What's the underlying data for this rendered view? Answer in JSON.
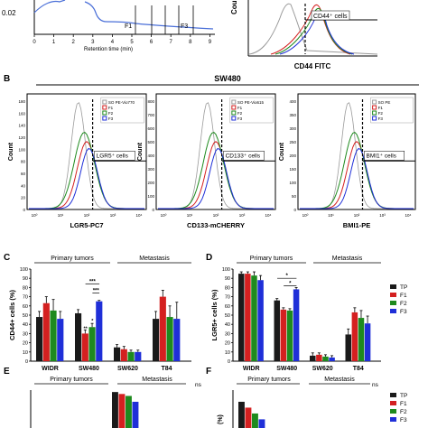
{
  "figure": {
    "panel_b_letter": "B",
    "panel_c_letter": "C",
    "panel_d_letter": "D",
    "panel_e_letter": "E",
    "panel_f_letter": "F",
    "sw480_title": "SW480"
  },
  "panel_a": {
    "ytick": "0.02",
    "xlabel": "Retention time (min)",
    "xticks": [
      "0",
      "1",
      "2",
      "3",
      "4",
      "5",
      "6",
      "7",
      "8",
      "9"
    ],
    "fraction_labels": [
      "F1",
      "F3"
    ]
  },
  "panel_a2": {
    "ylabel": "Cou",
    "xlabel": "CD44 FITC",
    "gate_label": "CD44⁺ cells"
  },
  "flow_panels": [
    {
      "ylabel": "Count",
      "xlabel": "LGR5-PC7",
      "gate_label": "LGR5⁺ cells",
      "legend": [
        "SO PE-Vio770",
        "F1",
        "F2",
        "F3"
      ],
      "yticks": [
        "0",
        "20",
        "40",
        "60",
        "80",
        "100",
        "120",
        "140",
        "160",
        "180"
      ]
    },
    {
      "ylabel": "Count",
      "xlabel": "CD133-mCHERRY",
      "gate_label": "CD133⁺ cells",
      "legend": [
        "SO PE-Vio615",
        "F1",
        "F2",
        "F3"
      ],
      "yticks": [
        "0",
        "100",
        "200",
        "300",
        "400",
        "500",
        "600",
        "700",
        "800"
      ]
    },
    {
      "ylabel": "Count",
      "xlabel": "BMI1-PE",
      "gate_label": "BMI1⁺ cells",
      "legend": [
        "SO PE",
        "F1",
        "F2",
        "F3"
      ],
      "yticks": [
        "0",
        "50",
        "100",
        "150",
        "200",
        "250",
        "300",
        "350",
        "400"
      ]
    }
  ],
  "flow_xticks": [
    "10⁰",
    "10¹",
    "10²",
    "10³",
    "10⁴"
  ],
  "colors": {
    "TP": "#1a1a1a",
    "F1": "#d42020",
    "F2": "#1e8a1e",
    "F3": "#1f2fd8",
    "SO": "#9a9a9a"
  },
  "chart_data": [
    {
      "type": "bar",
      "panel": "C",
      "ylabel": "CD44+ cells (%)",
      "ylim": [
        0,
        100
      ],
      "yticks": [
        0,
        10,
        20,
        30,
        40,
        50,
        60,
        70,
        80,
        90,
        100
      ],
      "categories": [
        "WIDR",
        "SW480",
        "SW620",
        "T84"
      ],
      "group_headers": [
        "Primary tumors",
        "Metastasis"
      ],
      "series": [
        {
          "name": "TP",
          "values": [
            48,
            52,
            15,
            46
          ],
          "errors": [
            6,
            4,
            3,
            8
          ]
        },
        {
          "name": "F1",
          "values": [
            63,
            30,
            13,
            70
          ],
          "errors": [
            7,
            4,
            3,
            7
          ]
        },
        {
          "name": "F2",
          "values": [
            55,
            37,
            10,
            48
          ],
          "errors": [
            12,
            4,
            2,
            12
          ]
        },
        {
          "name": "F3",
          "values": [
            46,
            65,
            10,
            46
          ],
          "errors": [
            8,
            1,
            2,
            18
          ]
        }
      ],
      "annotations": [
        "***",
        "***",
        "**",
        "*"
      ]
    },
    {
      "type": "bar",
      "panel": "D",
      "ylabel": "LGR5+ cells (%)",
      "ylim": [
        0,
        100
      ],
      "yticks": [
        0,
        10,
        20,
        30,
        40,
        50,
        60,
        70,
        80,
        90,
        100
      ],
      "categories": [
        "WIDR",
        "SW480",
        "SW620",
        "T84"
      ],
      "group_headers": [
        "Primary tumors",
        "Metastasis"
      ],
      "series": [
        {
          "name": "TP",
          "values": [
            95,
            66,
            6,
            29
          ],
          "errors": [
            2,
            2,
            3,
            6
          ]
        },
        {
          "name": "F1",
          "values": [
            95,
            56,
            7,
            53
          ],
          "errors": [
            2,
            2,
            2,
            5
          ]
        },
        {
          "name": "F2",
          "values": [
            93,
            55,
            5,
            47
          ],
          "errors": [
            4,
            2,
            2,
            8
          ]
        },
        {
          "name": "F3",
          "values": [
            88,
            78,
            4,
            41
          ],
          "errors": [
            5,
            2,
            2,
            8
          ]
        }
      ],
      "annotations": [
        "*",
        "*"
      ],
      "legend": [
        "TP",
        "F1",
        "F2",
        "F3"
      ]
    },
    {
      "type": "bar",
      "panel": "E",
      "group_headers": [
        "Primary tumors",
        "Metastasis"
      ],
      "annotation": "ns",
      "visible_values_note": "",
      "series": [
        {
          "name": "TP",
          "values": [
            98
          ]
        },
        {
          "name": "F1",
          "values": [
            96
          ]
        },
        {
          "name": "F2",
          "values": [
            94
          ]
        },
        {
          "name": "F3",
          "values": [
            88
          ]
        }
      ]
    },
    {
      "type": "bar",
      "panel": "F",
      "group_headers": [
        "Primary tumors",
        "Metastasis"
      ],
      "annotation": "ns",
      "ylabel": "(%)",
      "legend": [
        "TP",
        "F1",
        "F2",
        "F3"
      ],
      "series": [
        {
          "name": "TP",
          "values": [
            88
          ]
        },
        {
          "name": "F1",
          "values": [
            82
          ]
        },
        {
          "name": "F2",
          "values": [
            76
          ]
        },
        {
          "name": "F3",
          "values": [
            70
          ]
        }
      ]
    }
  ]
}
